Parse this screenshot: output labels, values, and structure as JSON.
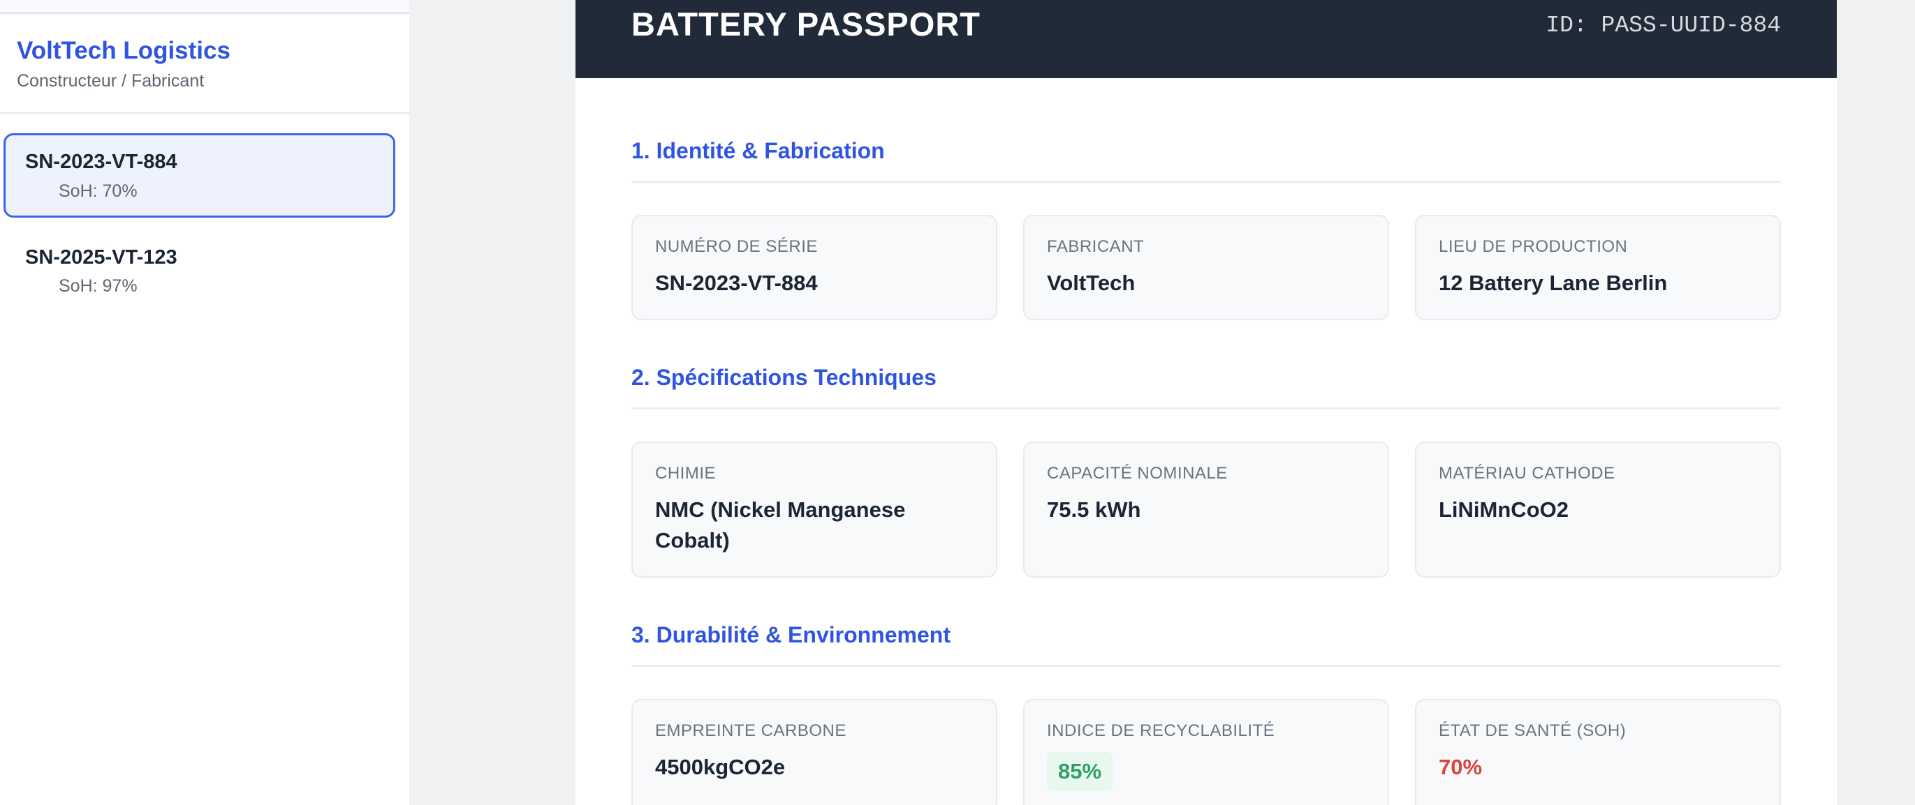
{
  "sidebar": {
    "brand": "VoltTech Logistics",
    "subtitle": "Constructeur / Fabricant",
    "items": [
      {
        "serial": "SN-2023-VT-884",
        "soh": "SoH: 70%",
        "selected": true
      },
      {
        "serial": "SN-2025-VT-123",
        "soh": "SoH: 97%",
        "selected": false
      }
    ]
  },
  "passport": {
    "title": "BATTERY PASSPORT",
    "id": "ID: PASS-UUID-884",
    "sections": [
      {
        "title": "1. Identité & Fabrication",
        "cards": [
          {
            "label": "NUMÉRO DE SÉRIE",
            "value": "SN-2023-VT-884"
          },
          {
            "label": "FABRICANT",
            "value": "VoltTech"
          },
          {
            "label": "LIEU DE PRODUCTION",
            "value": "12 Battery Lane Berlin"
          }
        ]
      },
      {
        "title": "2. Spécifications Techniques",
        "cards": [
          {
            "label": "CHIMIE",
            "value": "NMC (Nickel Manganese Cobalt)"
          },
          {
            "label": "CAPACITÉ NOMINALE",
            "value": "75.5 kWh"
          },
          {
            "label": "MATÉRIAU CATHODE",
            "value": "LiNiMnCoO2"
          }
        ]
      },
      {
        "title": "3. Durabilité & Environnement",
        "cards": [
          {
            "label": "EMPREINTE CARBONE",
            "value": "4500kgCO2e"
          },
          {
            "label": "INDICE DE RECYCLABILITÉ",
            "value": "85%",
            "status": "good"
          },
          {
            "label": "ÉTAT DE SANTÉ (SOH)",
            "value": "70%",
            "status": "bad"
          }
        ]
      }
    ]
  },
  "colors": {
    "accent_blue": "#2f55e0",
    "header_dark": "#212a38",
    "selected_item_border": "#4064e4",
    "selected_item_bg": "#eef2fd",
    "card_bg": "#f8f9fb",
    "card_border": "#e8eaee",
    "label_gray": "#6b7280",
    "value_dark": "#1b2534",
    "good_green": "#2f9e66",
    "good_green_bg": "#e9f8ef",
    "bad_red": "#d9443c",
    "page_bg": "#f0f1f3"
  }
}
